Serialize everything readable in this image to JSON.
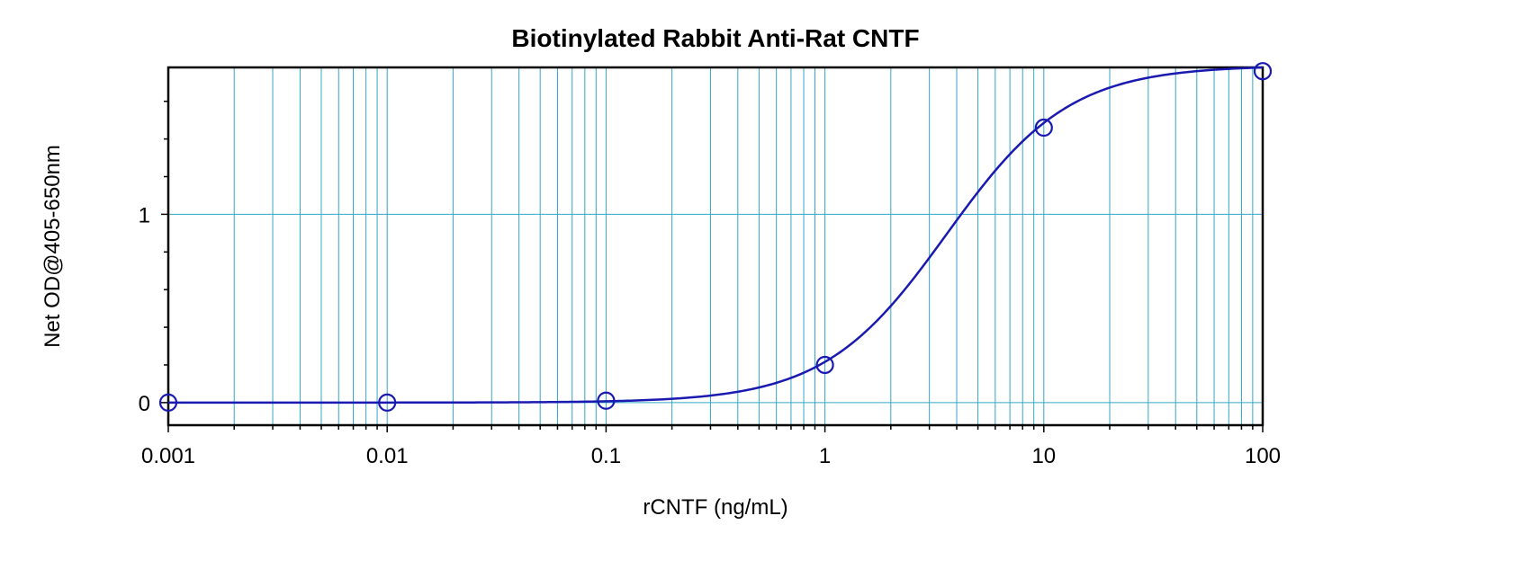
{
  "chart_data": {
    "type": "scatter",
    "title": "Biotinylated Rabbit Anti-Rat CNTF",
    "xlabel": "rCNTF (ng/mL)",
    "ylabel": "Net OD@405-650nm",
    "x_scale": "log",
    "xlim": [
      0.001,
      100
    ],
    "ylim": [
      -0.12,
      1.78
    ],
    "x_tick_labels": [
      "0.001",
      "0.01",
      "0.1",
      "1",
      "10",
      "100"
    ],
    "x_ticks": [
      0.001,
      0.01,
      0.1,
      1,
      10,
      100
    ],
    "y_tick_labels": [
      "0",
      "1"
    ],
    "y_ticks": [
      0,
      1
    ],
    "y_minor_step": 0.2,
    "grid": true,
    "colors": {
      "grid": "#33a6c9",
      "series": "#1a1ab0",
      "axes": "#000000"
    },
    "series": [
      {
        "x": [
          0.001,
          0.01,
          0.1,
          1,
          10,
          100
        ],
        "y": [
          0.0,
          0.0,
          0.01,
          0.2,
          1.46,
          1.76
        ]
      }
    ],
    "fit_curve": {
      "type": "4PL",
      "bottom": 0.0,
      "top": 1.79,
      "ec50": 3.6,
      "hill": 1.55
    }
  }
}
